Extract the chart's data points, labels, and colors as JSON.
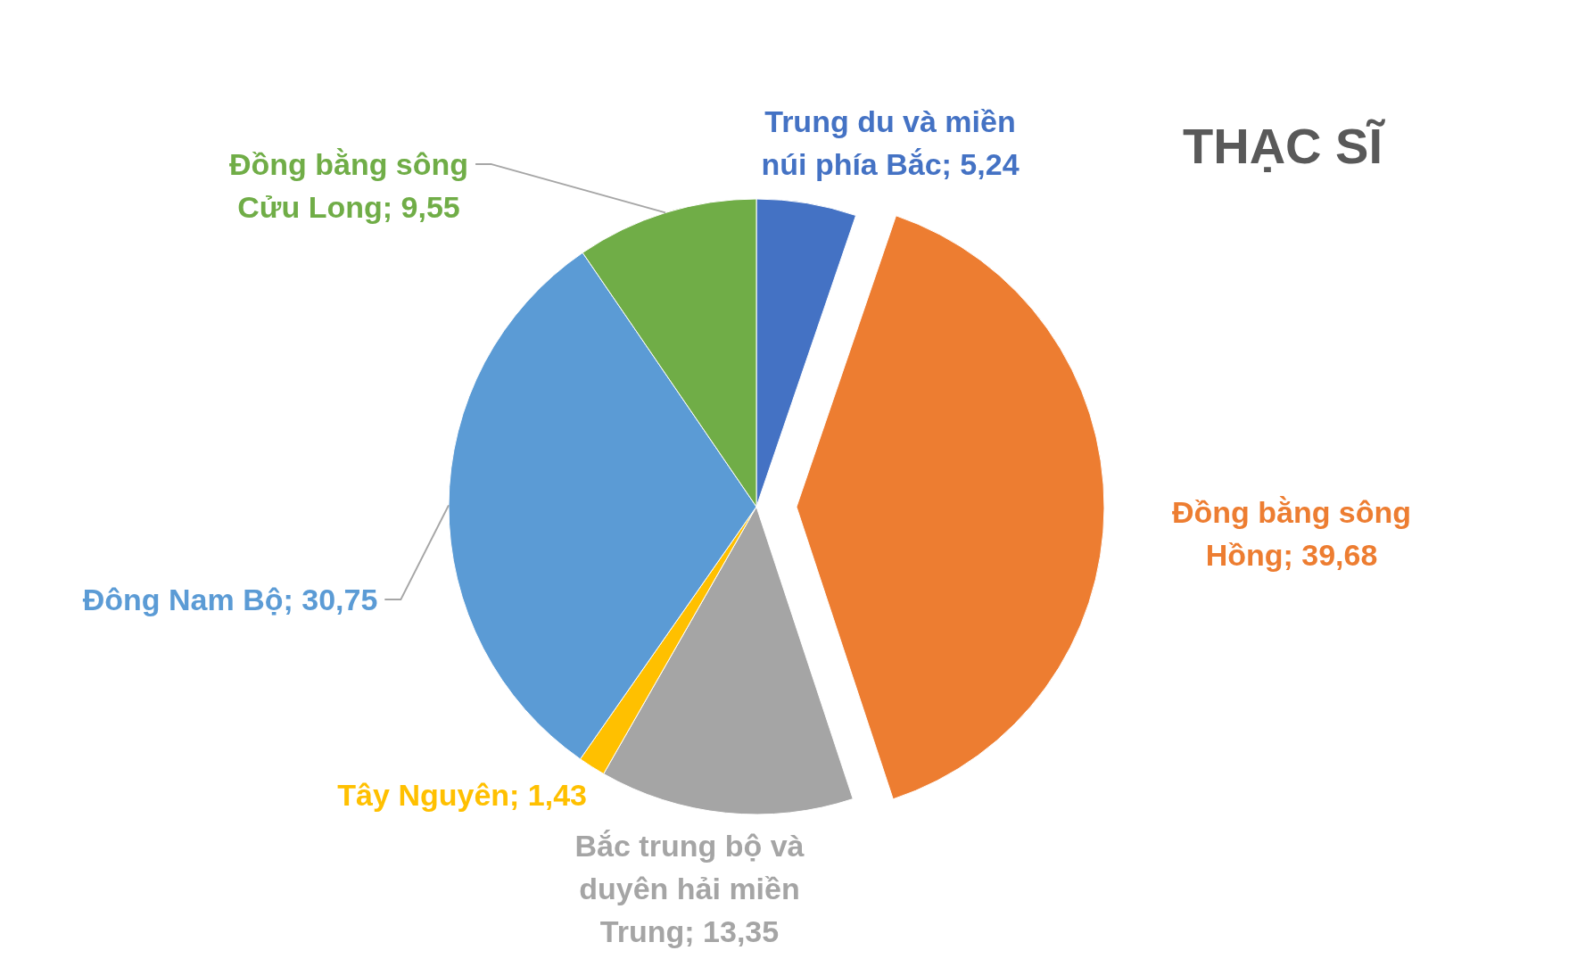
{
  "chart_data": {
    "type": "pie",
    "title": "THẠC SĨ",
    "categories": [
      "Trung du và miền núi phía Bắc",
      "Đồng bằng sông Hồng",
      "Bắc trung bộ và duyên hải miền Trung",
      "Tây Nguyên",
      "Đông Nam Bộ",
      "Đồng bằng sông Cửu Long"
    ],
    "values": [
      5.24,
      39.68,
      13.35,
      1.43,
      30.75,
      9.55
    ],
    "value_labels": [
      "5,24",
      "39,68",
      "13,35",
      "1,43",
      "30,75",
      "9,55"
    ],
    "colors": [
      "#4472c4",
      "#ed7d31",
      "#a5a5a5",
      "#ffc000",
      "#5b9bd5",
      "#70ad47"
    ]
  }
}
